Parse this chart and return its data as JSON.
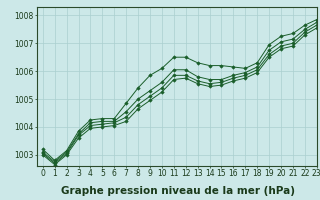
{
  "bg_color": "#cce8e8",
  "grid_color": "#aacfcf",
  "line_color": "#1a5e2a",
  "marker_color": "#1a5e2a",
  "ylim": [
    1002.6,
    1008.3
  ],
  "xlim": [
    -0.5,
    23
  ],
  "yticks": [
    1003,
    1004,
    1005,
    1006,
    1007,
    1008
  ],
  "xticks": [
    0,
    1,
    2,
    3,
    4,
    5,
    6,
    7,
    8,
    9,
    10,
    11,
    12,
    13,
    14,
    15,
    16,
    17,
    18,
    19,
    20,
    21,
    22,
    23
  ],
  "series": [
    [
      1003.2,
      1002.8,
      1003.15,
      1003.85,
      1004.25,
      1004.3,
      1004.3,
      1004.85,
      1005.4,
      1005.85,
      1006.1,
      1006.5,
      1006.5,
      1006.3,
      1006.2,
      1006.2,
      1006.15,
      1006.1,
      1006.3,
      1006.95,
      1007.25,
      1007.35,
      1007.65,
      1007.85
    ],
    [
      1003.1,
      1002.75,
      1003.1,
      1003.75,
      1004.15,
      1004.2,
      1004.2,
      1004.55,
      1005.0,
      1005.3,
      1005.6,
      1006.05,
      1006.05,
      1005.8,
      1005.7,
      1005.7,
      1005.85,
      1005.95,
      1006.15,
      1006.75,
      1007.05,
      1007.15,
      1007.5,
      1007.75
    ],
    [
      1003.05,
      1002.7,
      1003.05,
      1003.7,
      1004.05,
      1004.1,
      1004.15,
      1004.35,
      1004.8,
      1005.1,
      1005.4,
      1005.85,
      1005.85,
      1005.65,
      1005.55,
      1005.6,
      1005.75,
      1005.85,
      1006.05,
      1006.6,
      1006.9,
      1007.0,
      1007.4,
      1007.65
    ],
    [
      1003.0,
      1002.65,
      1003.0,
      1003.6,
      1003.95,
      1004.0,
      1004.05,
      1004.2,
      1004.65,
      1004.95,
      1005.25,
      1005.7,
      1005.75,
      1005.55,
      1005.45,
      1005.5,
      1005.65,
      1005.75,
      1005.95,
      1006.5,
      1006.8,
      1006.9,
      1007.3,
      1007.55
    ]
  ],
  "tick_fontsize": 5.5,
  "xlabel_fontsize": 7.5,
  "label_text": "Graphe pression niveau de la mer (hPa)"
}
